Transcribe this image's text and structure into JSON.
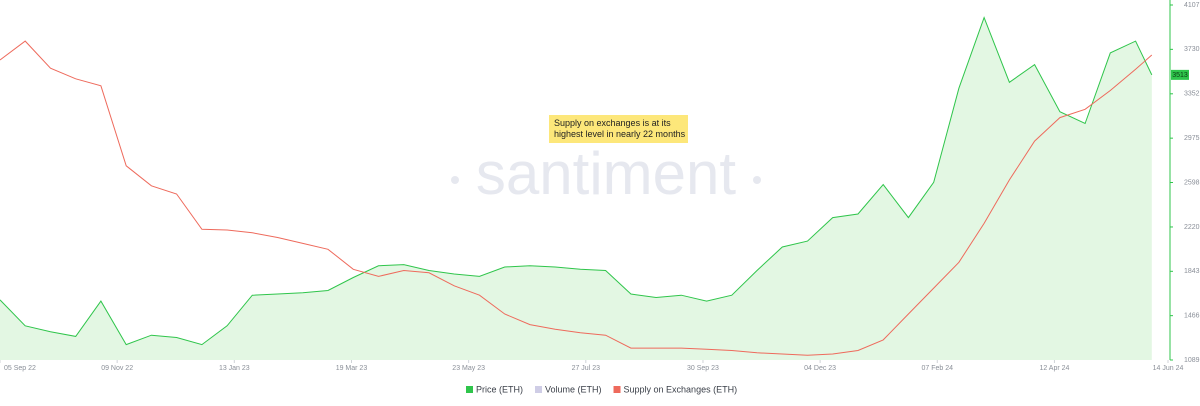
{
  "chart_data": {
    "type": "line",
    "watermark": "santiment",
    "annotation": [
      "Supply on exchanges is at its",
      "highest level in nearly 22 months"
    ],
    "x": [
      "2022-09-05",
      "2022-09-19",
      "2022-10-03",
      "2022-10-17",
      "2022-10-31",
      "2022-11-14",
      "2022-11-28",
      "2022-12-12",
      "2022-12-26",
      "2023-01-09",
      "2023-01-23",
      "2023-02-06",
      "2023-02-20",
      "2023-03-06",
      "2023-03-20",
      "2023-04-03",
      "2023-04-17",
      "2023-05-01",
      "2023-05-15",
      "2023-05-29",
      "2023-06-12",
      "2023-06-26",
      "2023-07-10",
      "2023-07-24",
      "2023-08-07",
      "2023-08-21",
      "2023-09-04",
      "2023-09-18",
      "2023-10-02",
      "2023-10-16",
      "2023-10-30",
      "2023-11-13",
      "2023-11-27",
      "2023-12-11",
      "2023-12-25",
      "2024-01-08",
      "2024-01-22",
      "2024-02-05",
      "2024-02-19",
      "2024-03-04",
      "2024-03-18",
      "2024-04-01",
      "2024-04-15",
      "2024-04-29",
      "2024-05-13",
      "2024-05-27",
      "2024-06-05"
    ],
    "series": [
      {
        "name": "Price (ETH)",
        "color": "#2fc54b",
        "fill": "#e3f7e3",
        "area": true,
        "values": [
          1600,
          1380,
          1330,
          1290,
          1590,
          1220,
          1300,
          1280,
          1220,
          1380,
          1640,
          1650,
          1660,
          1680,
          1790,
          1890,
          1900,
          1850,
          1820,
          1800,
          1880,
          1890,
          1880,
          1860,
          1850,
          1650,
          1620,
          1640,
          1590,
          1640,
          1850,
          2050,
          2100,
          2300,
          2330,
          2580,
          2300,
          2600,
          3400,
          4000,
          3450,
          3600,
          3200,
          3100,
          3700,
          3800,
          3513
        ],
        "last_label": 3513
      },
      {
        "name": "Volume (ETH)",
        "color": "#cfcde6"
      },
      {
        "name": "Supply on Exchanges (ETH)",
        "color": "#ee6a5c",
        "values": [
          3639,
          3800,
          3570,
          3480,
          3420,
          2740,
          2570,
          2500,
          2200,
          2194,
          2170,
          2130,
          2080,
          2030,
          1860,
          1800,
          1850,
          1830,
          1720,
          1640,
          1480,
          1390,
          1350,
          1320,
          1300,
          1190,
          1190,
          1190,
          1180,
          1170,
          1150,
          1140,
          1130,
          1140,
          1170,
          1260,
          1480,
          1700,
          1920,
          2250,
          2620,
          2950,
          3150,
          3220,
          3380,
          3560,
          3682
        ]
      }
    ],
    "xlim": [
      "2022-09-05",
      "2024-06-14"
    ],
    "xticks": [
      {
        "value": "2022-09-05",
        "label": "05 Sep 22"
      },
      {
        "value": "2022-11-09",
        "label": "09 Nov 22"
      },
      {
        "value": "2023-01-13",
        "label": "13 Jan 23"
      },
      {
        "value": "2023-03-19",
        "label": "19 Mar 23"
      },
      {
        "value": "2023-05-23",
        "label": "23 May 23"
      },
      {
        "value": "2023-07-27",
        "label": "27 Jul 23"
      },
      {
        "value": "2023-09-30",
        "label": "30 Sep 23"
      },
      {
        "value": "2023-12-04",
        "label": "04 Dec 23"
      },
      {
        "value": "2024-02-07",
        "label": "07 Feb 24"
      },
      {
        "value": "2024-04-12",
        "label": "12 Apr 24"
      },
      {
        "value": "2024-06-14",
        "label": "14 Jun 24"
      }
    ],
    "ylim": [
      1089,
      4107
    ],
    "yticks": [
      1089,
      1466,
      1843,
      2220,
      2598,
      2975,
      3352,
      3730,
      4107
    ]
  }
}
